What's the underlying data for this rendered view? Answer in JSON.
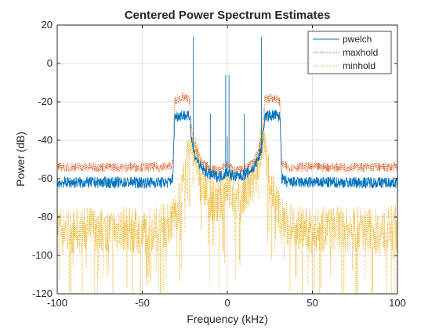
{
  "chart_data": {
    "type": "line",
    "title": "Centered Power Spectrum Estimates",
    "xlabel": "Frequency (kHz)",
    "ylabel": "Power (dB)",
    "xlim": [
      -100,
      100
    ],
    "ylim": [
      -120,
      20
    ],
    "xticks": [
      -100,
      -50,
      0,
      50,
      100
    ],
    "yticks": [
      -120,
      -100,
      -80,
      -60,
      -40,
      -20,
      0,
      20
    ],
    "grid": true,
    "legend_position": "top-right",
    "series": [
      {
        "name": "pwelch",
        "color": "#0072bd",
        "style": "solid",
        "points": [
          [
            -100,
            -62
          ],
          [
            -90,
            -62
          ],
          [
            -80,
            -62
          ],
          [
            -70,
            -62
          ],
          [
            -60,
            -62
          ],
          [
            -50,
            -62
          ],
          [
            -40,
            -62
          ],
          [
            -35,
            -62
          ],
          [
            -32,
            -60
          ],
          [
            -31,
            -28
          ],
          [
            -28,
            -27
          ],
          [
            -25,
            -27
          ],
          [
            -22,
            -28
          ],
          [
            -21,
            -38
          ],
          [
            -20,
            -45
          ],
          [
            -18,
            -50
          ],
          [
            -15,
            -55
          ],
          [
            -10,
            -58
          ],
          [
            -5,
            -59
          ],
          [
            -2,
            -58
          ],
          [
            0,
            -56
          ],
          [
            2,
            -58
          ],
          [
            5,
            -59
          ],
          [
            10,
            -58
          ],
          [
            15,
            -55
          ],
          [
            18,
            -50
          ],
          [
            20,
            -45
          ],
          [
            21,
            -38
          ],
          [
            22,
            -28
          ],
          [
            25,
            -27
          ],
          [
            28,
            -27
          ],
          [
            31,
            -28
          ],
          [
            32,
            -60
          ],
          [
            35,
            -62
          ],
          [
            40,
            -62
          ],
          [
            50,
            -62
          ],
          [
            60,
            -62
          ],
          [
            70,
            -62
          ],
          [
            80,
            -62
          ],
          [
            90,
            -62
          ],
          [
            100,
            -62
          ]
        ],
        "peaks": [
          [
            -20,
            14
          ],
          [
            20,
            14
          ],
          [
            -1,
            -6
          ],
          [
            1,
            -6
          ],
          [
            -10,
            -26
          ],
          [
            10,
            -26
          ],
          [
            0,
            -38
          ]
        ]
      },
      {
        "name": "maxhold",
        "color": "#d95319",
        "style": "dotted",
        "points": [
          [
            -100,
            -54
          ],
          [
            -90,
            -54
          ],
          [
            -80,
            -54
          ],
          [
            -70,
            -54
          ],
          [
            -60,
            -54
          ],
          [
            -50,
            -54
          ],
          [
            -40,
            -54
          ],
          [
            -35,
            -54
          ],
          [
            -32,
            -52
          ],
          [
            -31,
            -20
          ],
          [
            -28,
            -18
          ],
          [
            -25,
            -18
          ],
          [
            -22,
            -19
          ],
          [
            -21,
            -34
          ],
          [
            -20,
            -40
          ],
          [
            -18,
            -46
          ],
          [
            -15,
            -51
          ],
          [
            -10,
            -55
          ],
          [
            -5,
            -56
          ],
          [
            -2,
            -54
          ],
          [
            0,
            -52
          ],
          [
            2,
            -54
          ],
          [
            5,
            -56
          ],
          [
            10,
            -55
          ],
          [
            15,
            -51
          ],
          [
            18,
            -46
          ],
          [
            20,
            -40
          ],
          [
            21,
            -34
          ],
          [
            22,
            -19
          ],
          [
            25,
            -18
          ],
          [
            28,
            -18
          ],
          [
            31,
            -20
          ],
          [
            32,
            -52
          ],
          [
            35,
            -54
          ],
          [
            40,
            -54
          ],
          [
            50,
            -54
          ],
          [
            60,
            -54
          ],
          [
            70,
            -54
          ],
          [
            80,
            -54
          ],
          [
            90,
            -54
          ],
          [
            100,
            -54
          ]
        ],
        "peaks": [
          [
            -20,
            14
          ],
          [
            20,
            14
          ],
          [
            -1,
            -6
          ],
          [
            1,
            -6
          ],
          [
            -10,
            -26
          ],
          [
            10,
            -26
          ],
          [
            0,
            -38
          ]
        ]
      },
      {
        "name": "minhold",
        "color": "#edb120",
        "style": "dotted",
        "points": [
          [
            -100,
            -85
          ],
          [
            -90,
            -88
          ],
          [
            -80,
            -86
          ],
          [
            -70,
            -87
          ],
          [
            -60,
            -86
          ],
          [
            -50,
            -88
          ],
          [
            -40,
            -85
          ],
          [
            -35,
            -84
          ],
          [
            -32,
            -80
          ],
          [
            -28,
            -72
          ],
          [
            -25,
            -60
          ],
          [
            -23,
            -50
          ],
          [
            -22,
            -42
          ],
          [
            -21,
            -38
          ],
          [
            -20,
            -40
          ],
          [
            -18,
            -52
          ],
          [
            -15,
            -62
          ],
          [
            -10,
            -70
          ],
          [
            -5,
            -73
          ],
          [
            -2,
            -68
          ],
          [
            0,
            -60
          ],
          [
            2,
            -68
          ],
          [
            5,
            -73
          ],
          [
            10,
            -70
          ],
          [
            15,
            -62
          ],
          [
            18,
            -52
          ],
          [
            20,
            -40
          ],
          [
            21,
            -38
          ],
          [
            22,
            -42
          ],
          [
            23,
            -50
          ],
          [
            25,
            -60
          ],
          [
            28,
            -72
          ],
          [
            32,
            -80
          ],
          [
            35,
            -84
          ],
          [
            40,
            -85
          ],
          [
            50,
            -88
          ],
          [
            60,
            -86
          ],
          [
            70,
            -87
          ],
          [
            80,
            -86
          ],
          [
            90,
            -88
          ],
          [
            100,
            -85
          ]
        ],
        "peaks": [
          [
            -20,
            14
          ],
          [
            20,
            14
          ],
          [
            -10,
            -26
          ],
          [
            10,
            -26
          ]
        ]
      }
    ]
  }
}
